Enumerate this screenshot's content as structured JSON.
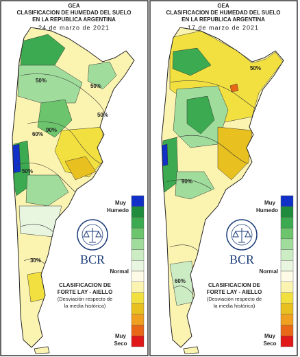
{
  "panels": [
    {
      "header": {
        "org": "GEA",
        "title_line1": "CLASIFICACION DE HUMEDAD DEL SUELO",
        "title_line2": "EN LA REPUBLICA ARGENTINA",
        "date": "24 de marzo de 2021"
      },
      "legend": {
        "top_label": [
          "Muy",
          "Humedo"
        ],
        "middle_label": "Normal",
        "bottom_label": [
          "Muy",
          "Seco"
        ],
        "colors": [
          "#1030c8",
          "#1e8c3c",
          "#3caa50",
          "#6cc46c",
          "#a0dc9c",
          "#ccecc4",
          "#e8f6e0",
          "#fdfbe6",
          "#fbf3b0",
          "#f2e040",
          "#e8c020",
          "#f0a020",
          "#e86818",
          "#e01818"
        ]
      },
      "logo": "BCR",
      "caption": [
        "CLASIFICACION DE",
        "FORTE LAY - AIELLO",
        "(Desviación respecto de",
        "la media histórica)"
      ],
      "contour_labels": [
        "50%",
        "50%",
        "50%",
        "60%",
        "90%",
        "50%",
        "30%"
      ]
    },
    {
      "header": {
        "org": "GEA",
        "title_line1": "CLASIFICACION DE HUMEDAD DEL SUELO",
        "title_line2": "EN LA REPUBLICA ARGENTINA",
        "date": "17 de marzo de 2021"
      },
      "legend": {
        "top_label": [
          "Muy",
          "Humedo"
        ],
        "middle_label": "Normal",
        "bottom_label": [
          "Muy",
          "Seco"
        ],
        "colors": [
          "#1030c8",
          "#1e8c3c",
          "#3caa50",
          "#6cc46c",
          "#a0dc9c",
          "#ccecc4",
          "#e8f6e0",
          "#fdfbe6",
          "#fbf3b0",
          "#f2e040",
          "#e8c020",
          "#f0a020",
          "#e86818",
          "#e01818"
        ]
      },
      "logo": "BCR",
      "caption": [
        "CLASIFICACION DE",
        "FORTE LAY - AIELLO",
        "(Desviación respecto de",
        "la media histórica)"
      ],
      "contour_labels": [
        "50%",
        "90%",
        "60%"
      ]
    }
  ]
}
